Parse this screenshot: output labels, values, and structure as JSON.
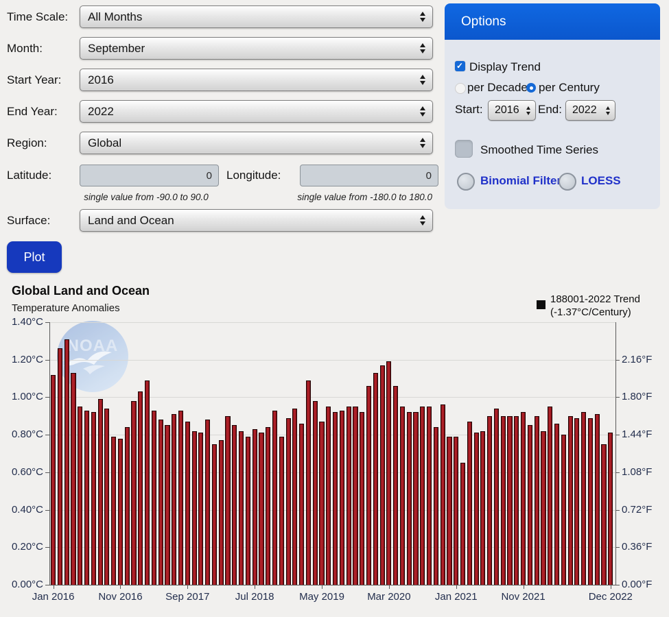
{
  "form": {
    "rows": [
      {
        "label": "Time Scale:",
        "value": "All Months"
      },
      {
        "label": "Month:",
        "value": "September"
      },
      {
        "label": "Start Year:",
        "value": "2016"
      },
      {
        "label": "End Year:",
        "value": "2022"
      },
      {
        "label": "Region:",
        "value": "Global"
      }
    ],
    "latitude": {
      "label": "Latitude:",
      "value": "0",
      "hint": "single value from -90.0 to 90.0"
    },
    "longitude": {
      "label": "Longitude:",
      "value": "0",
      "hint": "single value from -180.0 to 180.0"
    },
    "surface": {
      "label": "Surface:",
      "value": "Land and Ocean"
    },
    "plot_button": "Plot"
  },
  "options": {
    "title": "Options",
    "display_trend": "Display Trend",
    "per_decade": "per Decade",
    "per_century": "per Century",
    "start_label": "Start:",
    "start_value": "2016",
    "end_label": "End:",
    "end_value": "2022",
    "smoothed": "Smoothed Time Series",
    "binomial": "Binomial Filter",
    "loess": "LOESS"
  },
  "chart": {
    "title": "Global Land and Ocean",
    "subtitle": "Temperature Anomalies",
    "legend_line1": "188001-2022 Trend",
    "legend_line2": "(-1.37°C/Century)",
    "logo_text": "NOAA"
  },
  "chart_data": {
    "type": "bar",
    "title": "Global Land and Ocean Temperature Anomalies",
    "ylabel_left": "°C",
    "ylabel_right": "°F",
    "ylim": [
      0,
      1.4
    ],
    "grid": true,
    "legend": "188001-2022 Trend (-1.37°C/Century)",
    "bar_color": "#a81d24",
    "x": [
      "Jan 2016",
      "Feb 2016",
      "Mar 2016",
      "Apr 2016",
      "May 2016",
      "Jun 2016",
      "Jul 2016",
      "Aug 2016",
      "Sep 2016",
      "Oct 2016",
      "Nov 2016",
      "Dec 2016",
      "Jan 2017",
      "Feb 2017",
      "Mar 2017",
      "Apr 2017",
      "May 2017",
      "Jun 2017",
      "Jul 2017",
      "Aug 2017",
      "Sep 2017",
      "Oct 2017",
      "Nov 2017",
      "Dec 2017",
      "Jan 2018",
      "Feb 2018",
      "Mar 2018",
      "Apr 2018",
      "May 2018",
      "Jun 2018",
      "Jul 2018",
      "Aug 2018",
      "Sep 2018",
      "Oct 2018",
      "Nov 2018",
      "Dec 2018",
      "Jan 2019",
      "Feb 2019",
      "Mar 2019",
      "Apr 2019",
      "May 2019",
      "Jun 2019",
      "Jul 2019",
      "Aug 2019",
      "Sep 2019",
      "Oct 2019",
      "Nov 2019",
      "Dec 2019",
      "Jan 2020",
      "Feb 2020",
      "Mar 2020",
      "Apr 2020",
      "May 2020",
      "Jun 2020",
      "Jul 2020",
      "Aug 2020",
      "Sep 2020",
      "Oct 2020",
      "Nov 2020",
      "Dec 2020",
      "Jan 2021",
      "Feb 2021",
      "Mar 2021",
      "Apr 2021",
      "May 2021",
      "Jun 2021",
      "Jul 2021",
      "Aug 2021",
      "Sep 2021",
      "Oct 2021",
      "Nov 2021",
      "Dec 2021",
      "Jan 2022",
      "Feb 2022",
      "Mar 2022",
      "Apr 2022",
      "May 2022",
      "Jun 2022",
      "Jul 2022",
      "Aug 2022",
      "Sep 2022",
      "Oct 2022",
      "Nov 2022",
      "Dec 2022"
    ],
    "values": [
      1.12,
      1.26,
      1.31,
      1.13,
      0.95,
      0.93,
      0.92,
      0.99,
      0.94,
      0.79,
      0.78,
      0.84,
      0.98,
      1.03,
      1.09,
      0.93,
      0.88,
      0.85,
      0.91,
      0.93,
      0.87,
      0.82,
      0.81,
      0.88,
      0.75,
      0.77,
      0.9,
      0.85,
      0.82,
      0.79,
      0.83,
      0.81,
      0.84,
      0.93,
      0.79,
      0.89,
      0.94,
      0.86,
      1.09,
      0.98,
      0.87,
      0.95,
      0.92,
      0.93,
      0.95,
      0.95,
      0.92,
      1.06,
      1.13,
      1.17,
      1.19,
      1.06,
      0.95,
      0.92,
      0.92,
      0.95,
      0.95,
      0.84,
      0.96,
      0.79,
      0.79,
      0.65,
      0.87,
      0.81,
      0.82,
      0.9,
      0.94,
      0.9,
      0.9,
      0.9,
      0.92,
      0.85,
      0.9,
      0.82,
      0.95,
      0.86,
      0.8,
      0.9,
      0.89,
      0.92,
      0.89,
      0.91,
      0.75,
      0.81
    ],
    "y_ticks_left": [
      "1.40°C",
      "1.20°C",
      "1.00°C",
      "0.80°C",
      "0.60°C",
      "0.40°C",
      "0.20°C",
      "0.00°C"
    ],
    "y_ticks_right": [
      "2.16°F",
      "1.80°F",
      "1.44°F",
      "1.08°F",
      "0.72°F",
      "0.36°F",
      "0.00°F"
    ],
    "x_ticks": [
      "Jan 2016",
      "Nov 2016",
      "Sep 2017",
      "Jul 2018",
      "May 2019",
      "Mar 2020",
      "Jan 2021",
      "Nov 2021",
      "Dec 2022"
    ],
    "x_tick_indices": [
      0,
      10,
      20,
      30,
      40,
      50,
      60,
      70,
      83
    ]
  }
}
